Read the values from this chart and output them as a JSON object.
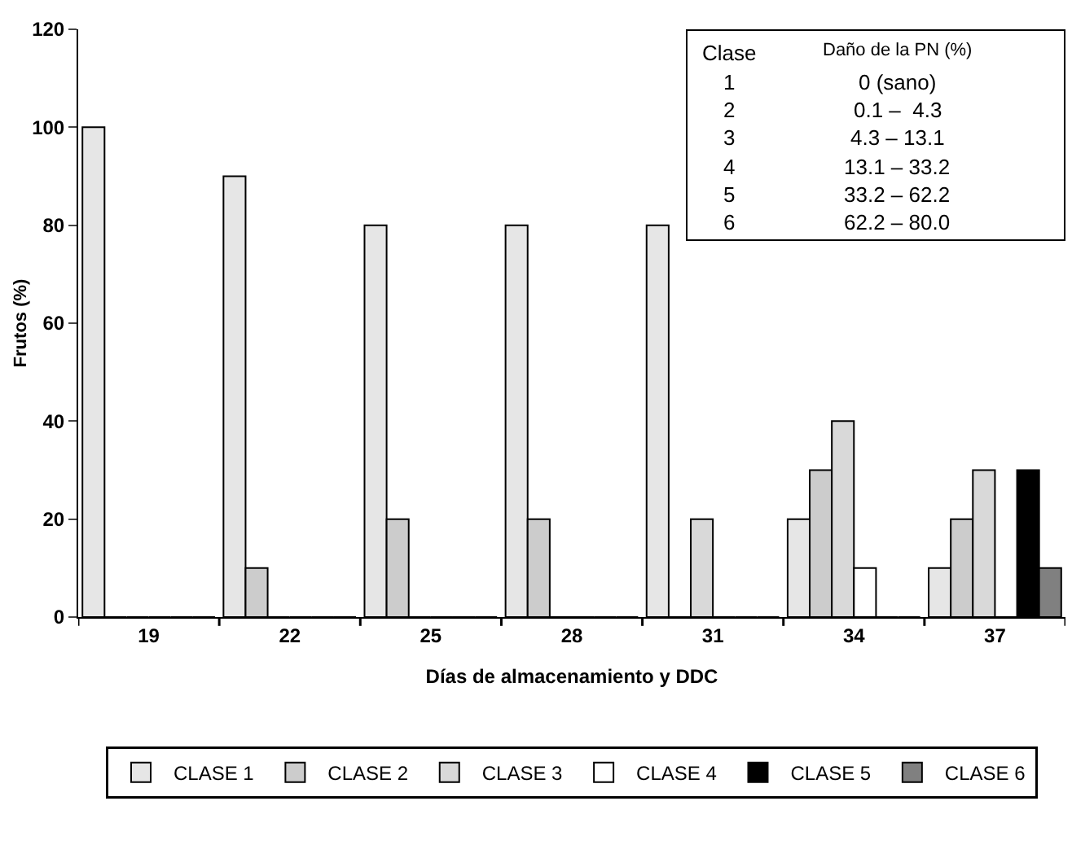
{
  "chart_data": {
    "type": "bar",
    "xlabel": "Días de almacenamiento y DDC",
    "ylabel": "Frutos (%)",
    "categories": [
      "19",
      "22",
      "25",
      "28",
      "31",
      "34",
      "37"
    ],
    "series": [
      {
        "name": "CLASE 1",
        "color": "#e6e6e6",
        "values": [
          100,
          90,
          80,
          80,
          80,
          20,
          10
        ]
      },
      {
        "name": "CLASE 2",
        "color": "#cccccc",
        "values": [
          0,
          10,
          20,
          20,
          0,
          30,
          20
        ]
      },
      {
        "name": "CLASE 3",
        "color": "#d9d9d9",
        "values": [
          0,
          0,
          0,
          0,
          20,
          40,
          30
        ]
      },
      {
        "name": "CLASE 4",
        "color": "#ffffff",
        "values": [
          0,
          0,
          0,
          0,
          0,
          10,
          0
        ]
      },
      {
        "name": "CLASE 5",
        "color": "#000000",
        "values": [
          0,
          0,
          0,
          0,
          0,
          0,
          30
        ]
      },
      {
        "name": "CLASE 6",
        "color": "#808080",
        "values": [
          0,
          0,
          0,
          0,
          0,
          0,
          10
        ]
      }
    ],
    "ylim": [
      0,
      120
    ],
    "yticks": [
      0,
      20,
      40,
      60,
      80,
      100,
      120
    ],
    "grid": false,
    "legend": "bottom",
    "annotations": [
      "Clase",
      "Daño de la PN (%)",
      "1",
      "0 (sano)",
      "2",
      "0.1 –  4.3",
      "3",
      "4.3 – 13.1",
      "4",
      "13.1 – 33.2",
      "5",
      "33.2 – 62.2",
      "6",
      "62.2 – 80.0"
    ]
  }
}
